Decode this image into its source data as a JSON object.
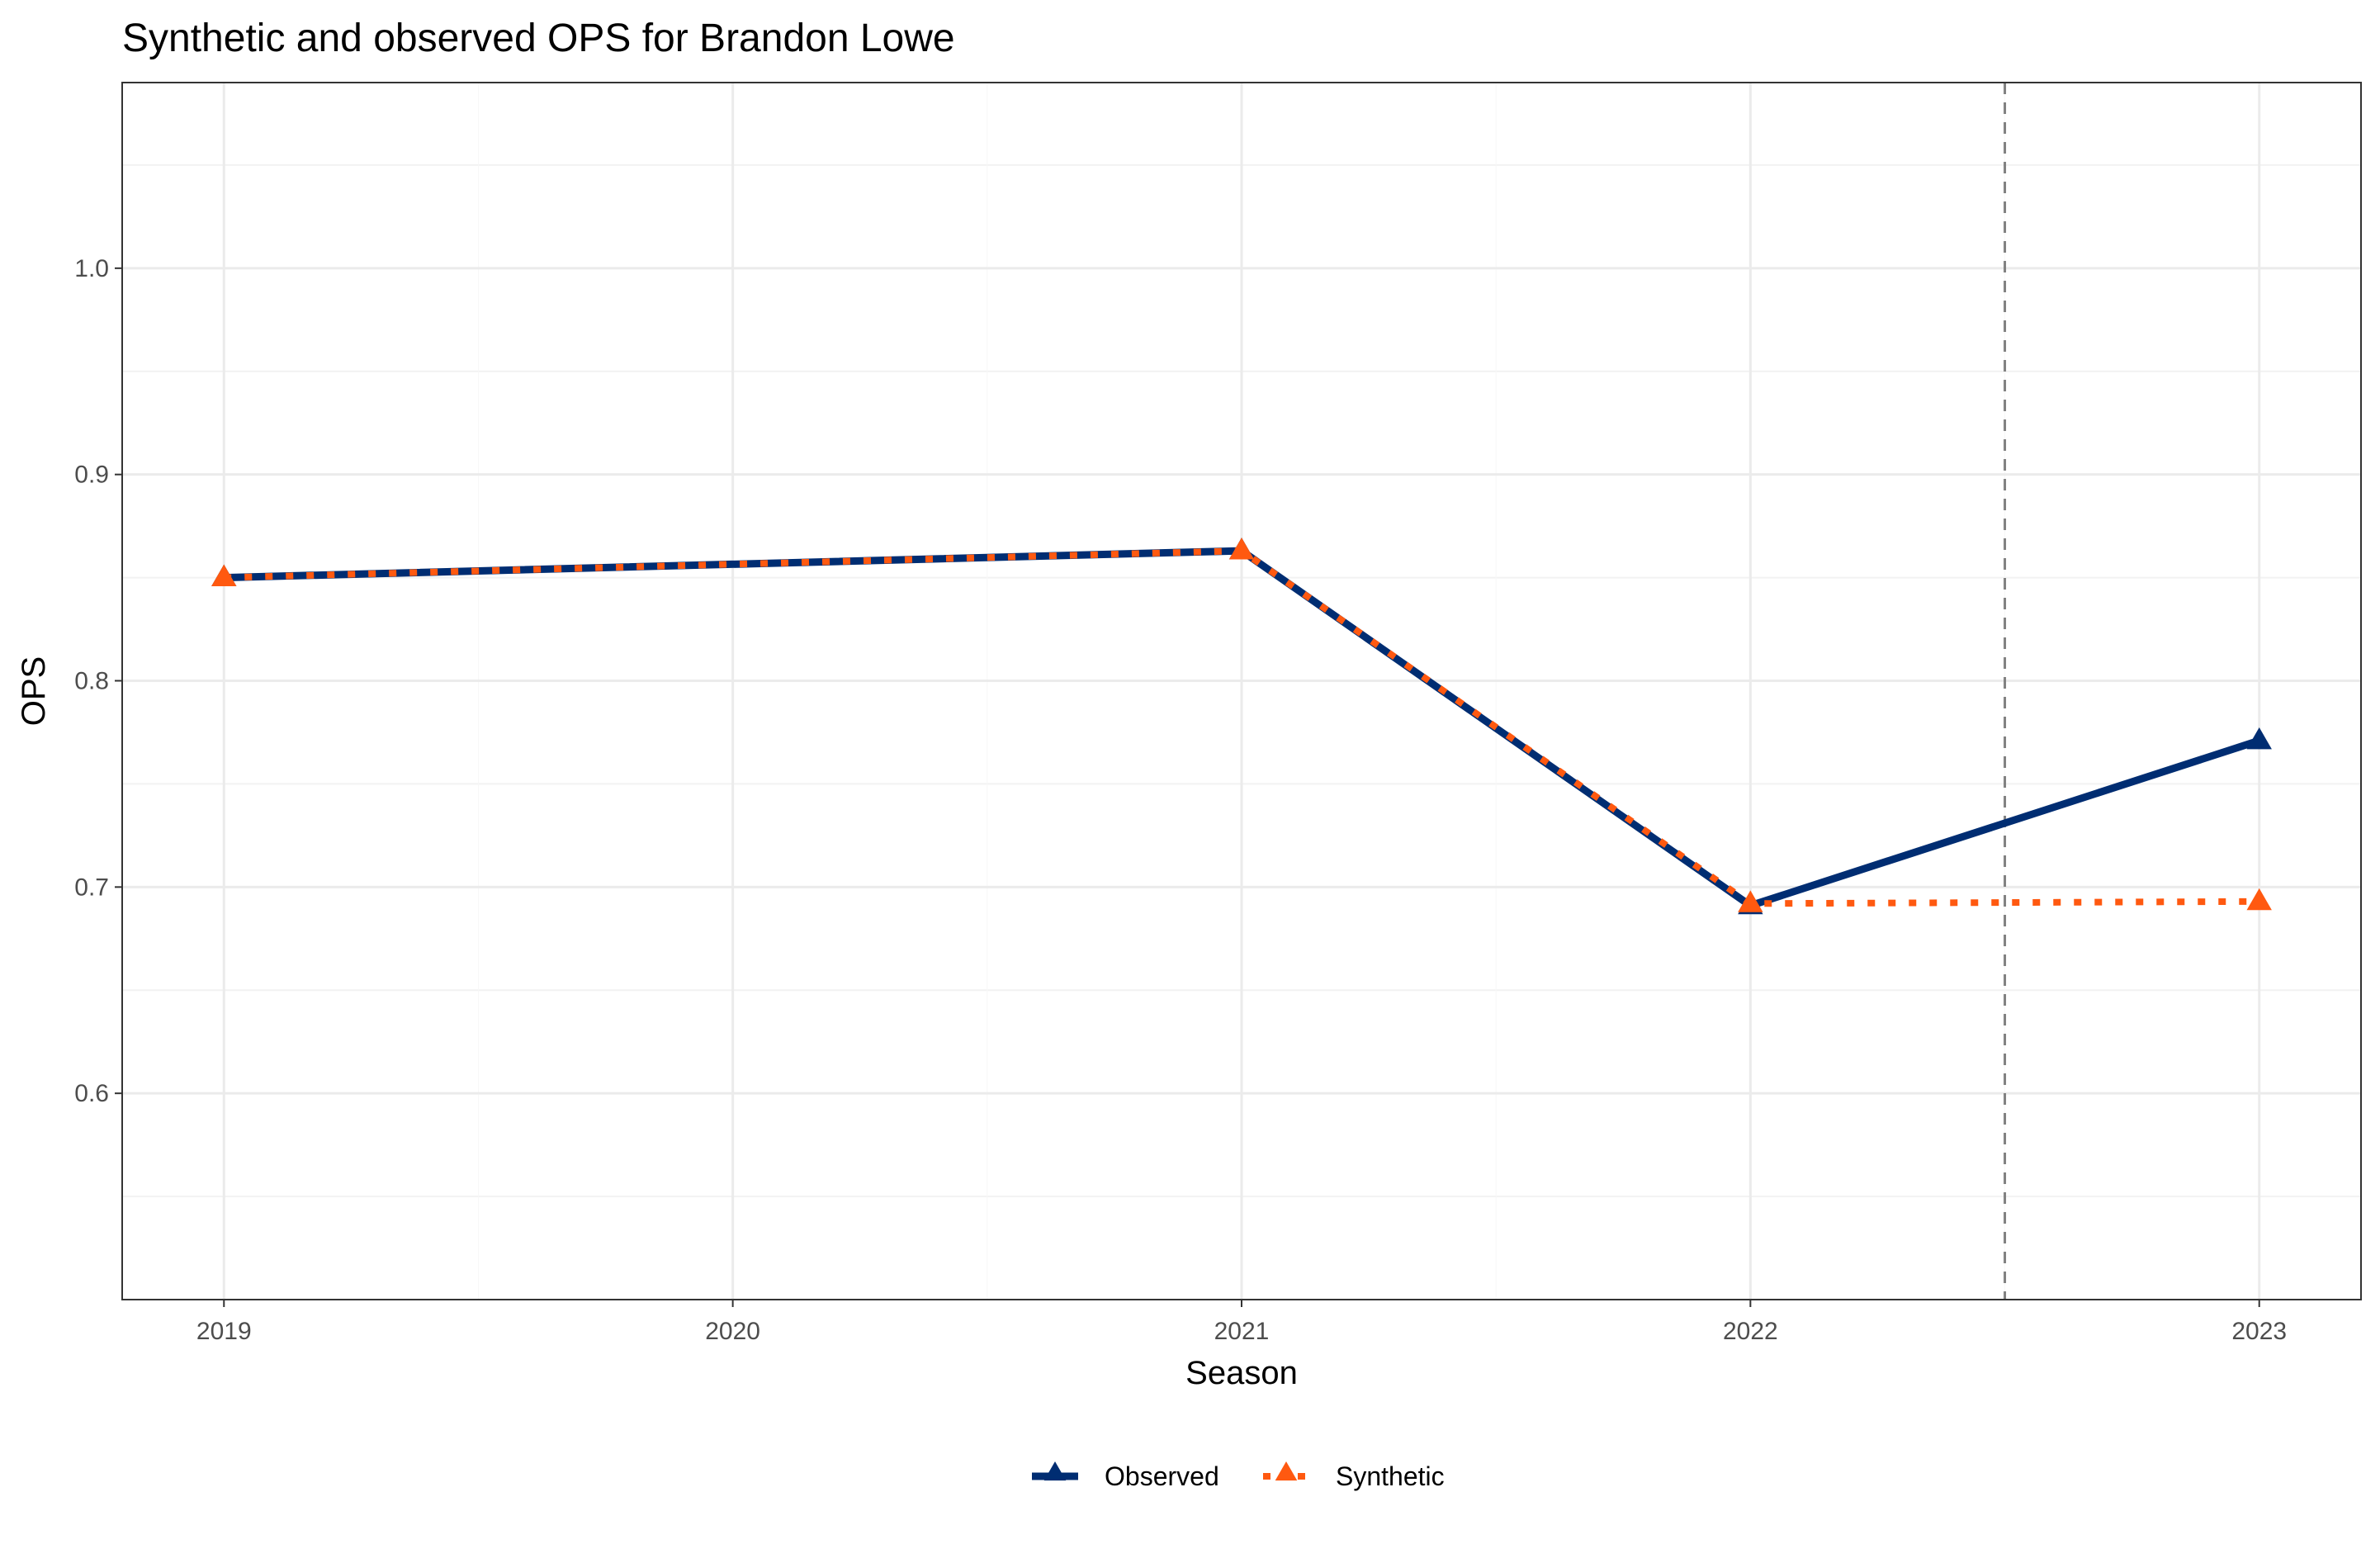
{
  "chart_data": {
    "type": "line",
    "title": "Synthetic and observed OPS for Brandon Lowe",
    "xlabel": "Season",
    "ylabel": "OPS",
    "x": [
      2019,
      2020,
      2021,
      2022,
      2023
    ],
    "x_tick_labels": [
      "2019",
      "2020",
      "2021",
      "2022",
      "2023"
    ],
    "xlim": [
      2018.8,
      2023.2
    ],
    "ylim": [
      0.5,
      1.09
    ],
    "y_ticks": [
      0.6,
      0.7,
      0.8,
      0.9,
      1.0
    ],
    "y_tick_labels": [
      "0.6",
      "0.7",
      "0.8",
      "0.9",
      "1.0"
    ],
    "grid": true,
    "series": [
      {
        "name": "Observed",
        "color": "#002D72",
        "line_style": "solid",
        "marker": "triangle",
        "points": [
          {
            "x": 2019,
            "y": 0.85,
            "marker": true
          },
          {
            "x": 2021,
            "y": 0.863,
            "marker": true
          },
          {
            "x": 2022,
            "y": 0.691,
            "marker": true
          },
          {
            "x": 2023,
            "y": 0.771,
            "marker": true
          }
        ]
      },
      {
        "name": "Synthetic",
        "color": "#FF5910",
        "line_style": "dotted",
        "marker": "triangle",
        "points": [
          {
            "x": 2019,
            "y": 0.85,
            "marker": true
          },
          {
            "x": 2021,
            "y": 0.863,
            "marker": true
          },
          {
            "x": 2022,
            "y": 0.692,
            "marker": true
          },
          {
            "x": 2023,
            "y": 0.693,
            "marker": true
          }
        ]
      }
    ],
    "reference_lines": [
      {
        "axis": "x",
        "value": 2022.5,
        "style": "dashed",
        "color": "#808080"
      }
    ],
    "legend": {
      "position": "bottom",
      "entries": [
        "Observed",
        "Synthetic"
      ]
    }
  }
}
